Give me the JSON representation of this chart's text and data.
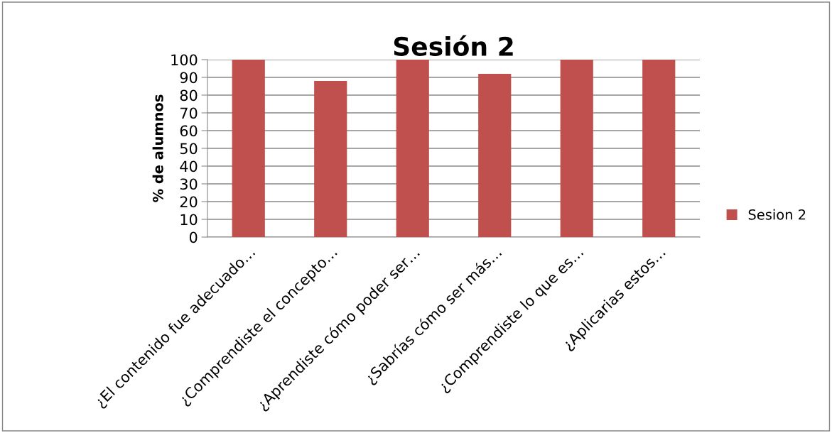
{
  "chart_data": {
    "type": "bar",
    "title": "Sesión 2",
    "ylabel": "% de alumnos",
    "categories": [
      "¿El contenido fue adecuado…",
      "¿Comprendiste el concepto…",
      "¿Aprendiste cómo poder ser…",
      "¿Sabrías cómo ser más…",
      "¿Comprendiste lo que es…",
      "¿Aplicarias estos…"
    ],
    "series": [
      {
        "name": "Sesion 2",
        "color": "#c0504d",
        "values": [
          100,
          88,
          100,
          92,
          100,
          100
        ]
      }
    ],
    "ylim": [
      0,
      100
    ],
    "yticks": [
      0,
      10,
      20,
      30,
      40,
      50,
      60,
      70,
      80,
      90,
      100
    ],
    "grid": "y",
    "legend": "right"
  }
}
